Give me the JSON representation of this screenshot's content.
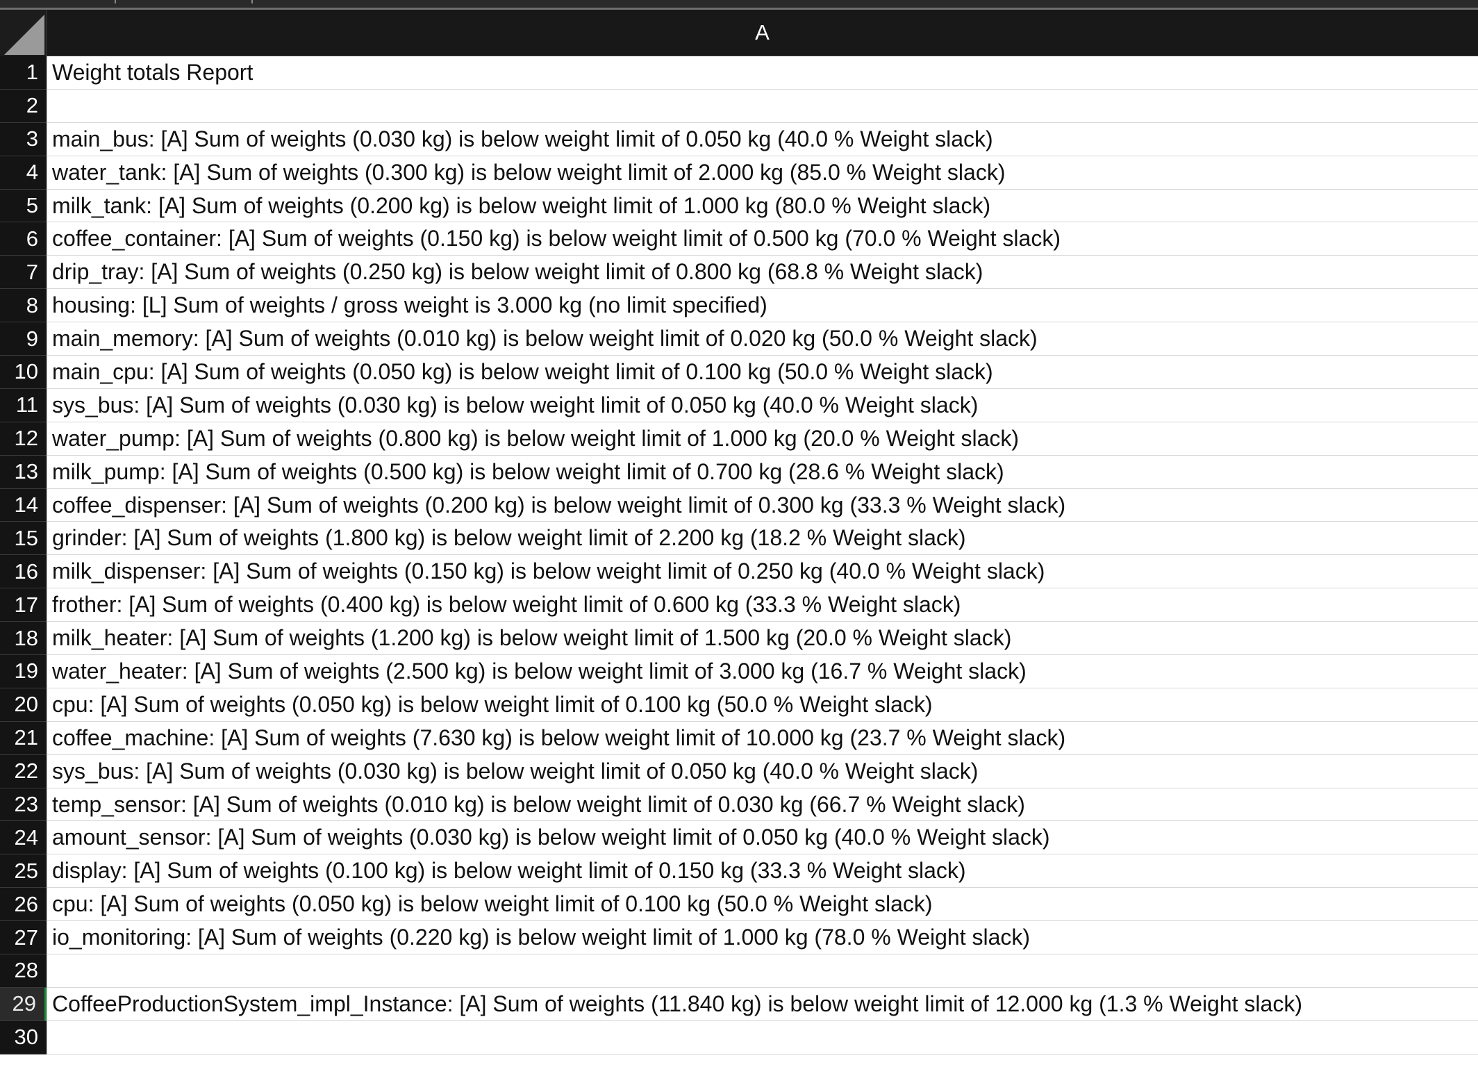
{
  "spreadsheet": {
    "column_header": "A",
    "rows": [
      {
        "num": "1",
        "text": "Weight totals Report"
      },
      {
        "num": "2",
        "text": ""
      },
      {
        "num": "3",
        "text": "main_bus: [A] Sum of weights (0.030 kg) is below weight limit of 0.050 kg (40.0 % Weight slack)"
      },
      {
        "num": "4",
        "text": "water_tank: [A] Sum of weights (0.300 kg) is below weight limit of 2.000 kg (85.0 % Weight slack)"
      },
      {
        "num": "5",
        "text": "milk_tank: [A] Sum of weights (0.200 kg) is below weight limit of 1.000 kg (80.0 % Weight slack)"
      },
      {
        "num": "6",
        "text": "coffee_container: [A] Sum of weights (0.150 kg) is below weight limit of 0.500 kg (70.0 % Weight slack)"
      },
      {
        "num": "7",
        "text": "drip_tray: [A] Sum of weights (0.250 kg) is below weight limit of 0.800 kg (68.8 % Weight slack)"
      },
      {
        "num": "8",
        "text": "housing: [L] Sum of weights / gross weight is 3.000 kg (no limit specified)"
      },
      {
        "num": "9",
        "text": "main_memory: [A] Sum of weights (0.010 kg) is below weight limit of 0.020 kg (50.0 % Weight slack)"
      },
      {
        "num": "10",
        "text": "main_cpu: [A] Sum of weights (0.050 kg) is below weight limit of 0.100 kg (50.0 % Weight slack)"
      },
      {
        "num": "11",
        "text": "sys_bus: [A] Sum of weights (0.030 kg) is below weight limit of 0.050 kg (40.0 % Weight slack)"
      },
      {
        "num": "12",
        "text": "water_pump: [A] Sum of weights (0.800 kg) is below weight limit of 1.000 kg (20.0 % Weight slack)"
      },
      {
        "num": "13",
        "text": "milk_pump: [A] Sum of weights (0.500 kg) is below weight limit of 0.700 kg (28.6 % Weight slack)"
      },
      {
        "num": "14",
        "text": "coffee_dispenser: [A] Sum of weights (0.200 kg) is below weight limit of 0.300 kg (33.3 % Weight slack)"
      },
      {
        "num": "15",
        "text": "grinder: [A] Sum of weights (1.800 kg) is below weight limit of 2.200 kg (18.2 % Weight slack)"
      },
      {
        "num": "16",
        "text": "milk_dispenser: [A] Sum of weights (0.150 kg) is below weight limit of 0.250 kg (40.0 % Weight slack)"
      },
      {
        "num": "17",
        "text": "frother: [A] Sum of weights (0.400 kg) is below weight limit of 0.600 kg (33.3 % Weight slack)"
      },
      {
        "num": "18",
        "text": "milk_heater: [A] Sum of weights (1.200 kg) is below weight limit of 1.500 kg (20.0 % Weight slack)"
      },
      {
        "num": "19",
        "text": "water_heater: [A] Sum of weights (2.500 kg) is below weight limit of 3.000 kg (16.7 % Weight slack)"
      },
      {
        "num": "20",
        "text": "cpu: [A] Sum of weights (0.050 kg) is below weight limit of 0.100 kg (50.0 % Weight slack)"
      },
      {
        "num": "21",
        "text": "coffee_machine: [A] Sum of weights (7.630 kg) is below weight limit of 10.000 kg (23.7 % Weight slack)"
      },
      {
        "num": "22",
        "text": "sys_bus: [A] Sum of weights (0.030 kg) is below weight limit of 0.050 kg (40.0 % Weight slack)"
      },
      {
        "num": "23",
        "text": "temp_sensor: [A] Sum of weights (0.010 kg) is below weight limit of 0.030 kg (66.7 % Weight slack)"
      },
      {
        "num": "24",
        "text": "amount_sensor: [A] Sum of weights (0.030 kg) is below weight limit of 0.050 kg (40.0 % Weight slack)"
      },
      {
        "num": "25",
        "text": "display: [A] Sum of weights (0.100 kg) is below weight limit of 0.150 kg (33.3 % Weight slack)"
      },
      {
        "num": "26",
        "text": "cpu: [A] Sum of weights (0.050 kg) is below weight limit of 0.100 kg (50.0 % Weight slack)"
      },
      {
        "num": "27",
        "text": "io_monitoring: [A] Sum of weights (0.220 kg) is below weight limit of 1.000 kg (78.0 % Weight slack)"
      },
      {
        "num": "28",
        "text": ""
      },
      {
        "num": "29",
        "text": "CoffeeProductionSystem_impl_Instance: [A] Sum of weights (11.840 kg) is below weight limit of 12.000 kg (1.3 % Weight slack)"
      },
      {
        "num": "30",
        "text": ""
      }
    ],
    "selected_row": "29"
  }
}
